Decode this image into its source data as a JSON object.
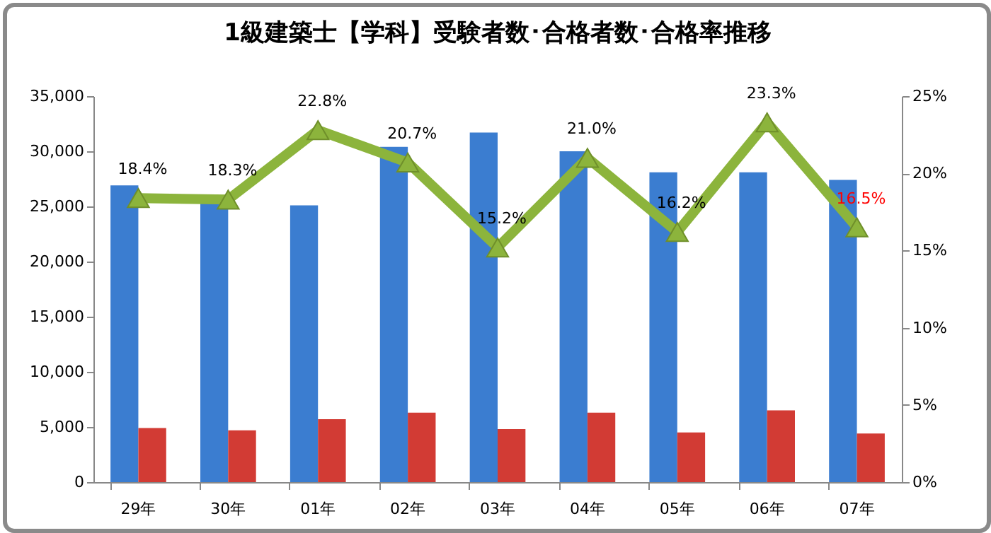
{
  "chart_data": {
    "type": "bar",
    "title": "1級建築士【学科】受験者数･合格者数･合格率推移",
    "categories": [
      "29年",
      "30年",
      "01年",
      "02年",
      "03年",
      "04年",
      "05年",
      "06年",
      "07年"
    ],
    "series": [
      {
        "color": "#3b7dd0",
        "values": [
          26900,
          25300,
          25100,
          30400,
          31700,
          30000,
          28100,
          28100,
          27400
        ]
      },
      {
        "color": "#d23b34",
        "values": [
          4900,
          4700,
          5700,
          6300,
          4800,
          6300,
          4500,
          6500,
          4400
        ]
      },
      {
        "type": "line",
        "axis": "y2",
        "color": "#8cb43c",
        "marker": "triangle",
        "line_style": "solid",
        "values": [
          18.4,
          18.3,
          22.8,
          20.7,
          15.2,
          21.0,
          16.2,
          23.3,
          16.5
        ],
        "value_labels": [
          "18.4%",
          "18.3%",
          "22.8%",
          "20.7%",
          "15.2%",
          "21.0%",
          "16.2%",
          "23.3%",
          "16.5%"
        ]
      }
    ],
    "ylim": [
      0,
      35000
    ],
    "yticks": [
      {
        "value": 0,
        "label": "0"
      },
      {
        "value": 5000,
        "label": "5,000"
      },
      {
        "value": 10000,
        "label": "10,000"
      },
      {
        "value": 15000,
        "label": "15,000"
      },
      {
        "value": 20000,
        "label": "20,000"
      },
      {
        "value": 25000,
        "label": "25,000"
      },
      {
        "value": 30000,
        "label": "30,000"
      },
      {
        "value": 35000,
        "label": "35,000"
      }
    ],
    "y2lim": [
      0,
      25
    ],
    "y2ticks": [
      {
        "value": 0,
        "label": "0%"
      },
      {
        "value": 5,
        "label": "5%"
      },
      {
        "value": 10,
        "label": "10%"
      },
      {
        "value": 15,
        "label": "15%"
      },
      {
        "value": 20,
        "label": "20%"
      },
      {
        "value": 25,
        "label": "25%"
      }
    ],
    "grid": false
  }
}
